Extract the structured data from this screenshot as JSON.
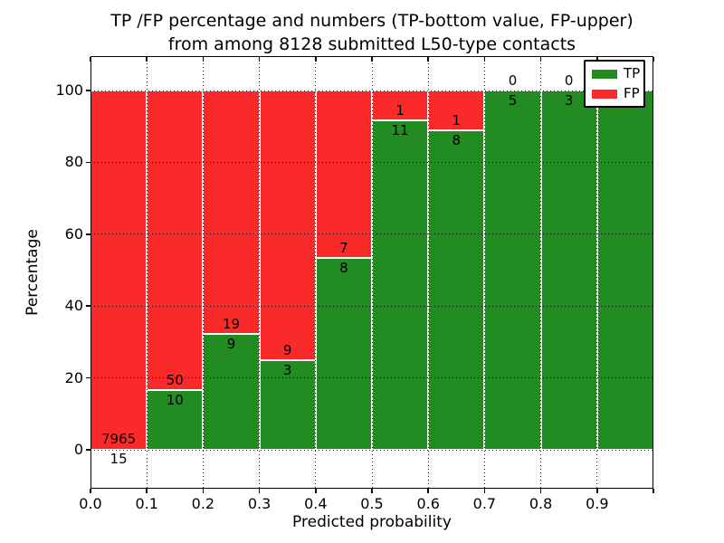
{
  "figure": {
    "title_line1": "TP /FP percentage and numbers (TP-bottom value, FP-upper)",
    "title_line2": "from among 8128 submitted L50-type contacts"
  },
  "axes": {
    "x_label": "Predicted probability",
    "y_label": "Percentage",
    "x_tick_labels": [
      "0.0",
      "0.1",
      "0.2",
      "0.3",
      "0.4",
      "0.5",
      "0.6",
      "0.7",
      "0.8",
      "0.9"
    ],
    "y_tick_labels": [
      "0",
      "20",
      "40",
      "60",
      "80",
      "100"
    ],
    "y_tick_values": [
      0,
      20,
      40,
      60,
      80,
      100
    ]
  },
  "legend": {
    "items": [
      {
        "label": "TP",
        "color": "#228b22"
      },
      {
        "label": "FP",
        "color": "#fa2a2a"
      }
    ]
  },
  "chart_data": {
    "type": "bar",
    "stacked": true,
    "normalized_to_percent": true,
    "title": "TP /FP percentage and numbers (TP-bottom value, FP-upper) from among 8128 submitted L50-type contacts",
    "xlabel": "Predicted probability",
    "ylabel": "Percentage",
    "x_bin_edges": [
      0.0,
      0.1,
      0.2,
      0.3,
      0.4,
      0.5,
      0.6,
      0.7,
      0.8,
      0.9,
      1.0
    ],
    "categories": [
      "0.0-0.1",
      "0.1-0.2",
      "0.2-0.3",
      "0.3-0.4",
      "0.4-0.5",
      "0.5-0.6",
      "0.6-0.7",
      "0.7-0.8",
      "0.8-0.9",
      "0.9-1.0"
    ],
    "series": [
      {
        "name": "TP",
        "color": "#228b22",
        "counts": [
          15,
          10,
          9,
          3,
          8,
          11,
          8,
          5,
          3,
          4
        ]
      },
      {
        "name": "FP",
        "color": "#fa2a2a",
        "counts": [
          7965,
          50,
          19,
          9,
          7,
          1,
          1,
          0,
          0,
          0
        ]
      }
    ],
    "total_contacts": 8128,
    "ylim_percent": [
      0,
      100
    ],
    "grid": "dotted",
    "legend_position": "upper right"
  }
}
